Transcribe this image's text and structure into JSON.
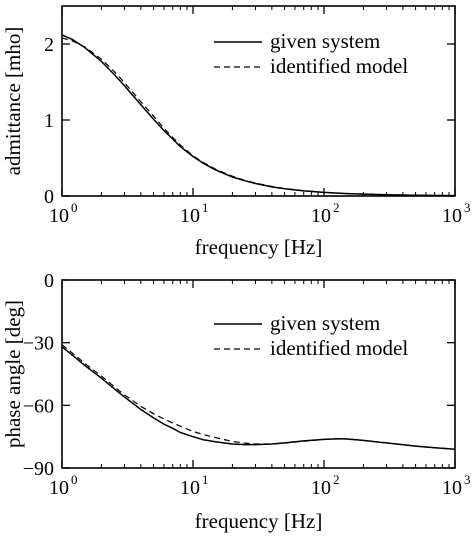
{
  "colors": {
    "axis": "#000000",
    "line": "#000000",
    "background": "#ffffff"
  },
  "chart_data": [
    {
      "type": "line",
      "xscale": "log",
      "xlim": [
        1,
        1000
      ],
      "ylim": [
        0,
        2.5
      ],
      "xlabel": "frequency [Hz]",
      "ylabel": "admittance [mho]",
      "xticks": [
        {
          "value": 1,
          "base": "10",
          "exp": "0"
        },
        {
          "value": 10,
          "base": "10",
          "exp": "1"
        },
        {
          "value": 100,
          "base": "10",
          "exp": "2"
        },
        {
          "value": 1000,
          "base": "10",
          "exp": "3"
        }
      ],
      "yticks": [
        {
          "value": 0,
          "label": "0"
        },
        {
          "value": 1,
          "label": "1"
        },
        {
          "value": 2,
          "label": "2"
        }
      ],
      "grid": false,
      "legend_position": "top-right",
      "series": [
        {
          "name": "given system",
          "style": "solid",
          "x": [
            1,
            1.2,
            1.5,
            2,
            2.5,
            3,
            4,
            5,
            6,
            7,
            8,
            10,
            12,
            15,
            20,
            25,
            30,
            40,
            50,
            70,
            100,
            150,
            200,
            300,
            500,
            700,
            1000
          ],
          "y": [
            2.12,
            2.06,
            1.95,
            1.77,
            1.6,
            1.45,
            1.2,
            1.01,
            0.86,
            0.75,
            0.65,
            0.52,
            0.43,
            0.34,
            0.25,
            0.2,
            0.165,
            0.12,
            0.095,
            0.068,
            0.047,
            0.032,
            0.025,
            0.017,
            0.01,
            0.007,
            0.005
          ]
        },
        {
          "name": "identified model",
          "style": "dashed",
          "x": [
            1,
            1.2,
            1.5,
            2,
            2.5,
            3,
            4,
            5,
            6,
            7,
            8,
            10,
            12,
            15,
            20,
            25,
            30,
            40,
            50,
            70,
            100,
            150,
            200,
            300,
            500,
            700,
            1000
          ],
          "y": [
            2.08,
            2.04,
            1.96,
            1.8,
            1.64,
            1.49,
            1.24,
            1.05,
            0.89,
            0.77,
            0.67,
            0.53,
            0.44,
            0.35,
            0.26,
            0.205,
            0.17,
            0.125,
            0.098,
            0.07,
            0.048,
            0.033,
            0.025,
            0.017,
            0.01,
            0.007,
            0.005
          ]
        }
      ]
    },
    {
      "type": "line",
      "xscale": "log",
      "xlim": [
        1,
        1000
      ],
      "ylim": [
        -90,
        0
      ],
      "xlabel": "frequency [Hz]",
      "ylabel": "phase angle [deg]",
      "xticks": [
        {
          "value": 1,
          "base": "10",
          "exp": "0"
        },
        {
          "value": 10,
          "base": "10",
          "exp": "1"
        },
        {
          "value": 100,
          "base": "10",
          "exp": "2"
        },
        {
          "value": 1000,
          "base": "10",
          "exp": "3"
        }
      ],
      "yticks": [
        {
          "value": 0,
          "label": "0"
        },
        {
          "value": -30,
          "label": "−30"
        },
        {
          "value": -60,
          "label": "−60"
        },
        {
          "value": -90,
          "label": "−90"
        }
      ],
      "grid": false,
      "legend_position": "top-right",
      "series": [
        {
          "name": "given system",
          "style": "solid",
          "x": [
            1,
            1.2,
            1.5,
            2,
            2.5,
            3,
            4,
            5,
            6,
            7,
            8,
            10,
            12,
            15,
            20,
            25,
            30,
            40,
            50,
            70,
            100,
            130,
            150,
            200,
            300,
            500,
            700,
            1000
          ],
          "y": [
            -32,
            -36,
            -41,
            -47,
            -52,
            -56,
            -62,
            -66,
            -69,
            -71,
            -73,
            -75,
            -76.5,
            -77.5,
            -78.5,
            -78.8,
            -78.8,
            -78.5,
            -78,
            -77,
            -76.3,
            -76,
            -76.1,
            -76.8,
            -78,
            -79.5,
            -80.3,
            -81
          ]
        },
        {
          "name": "identified model",
          "style": "dashed",
          "x": [
            1,
            1.2,
            1.5,
            2,
            2.5,
            3,
            4,
            5,
            6,
            7,
            8,
            10,
            12,
            15,
            20,
            25,
            30,
            40,
            50,
            70,
            100,
            130,
            150,
            200,
            300,
            500,
            700,
            1000
          ],
          "y": [
            -31,
            -35,
            -40,
            -46,
            -51,
            -55,
            -60.5,
            -64,
            -66.5,
            -68.5,
            -70,
            -72.5,
            -74,
            -75.5,
            -77.3,
            -78.1,
            -78.5,
            -78.5,
            -78.1,
            -77.2,
            -76.3,
            -76,
            -76.1,
            -76.8,
            -78,
            -79.5,
            -80.3,
            -81
          ]
        }
      ]
    }
  ]
}
